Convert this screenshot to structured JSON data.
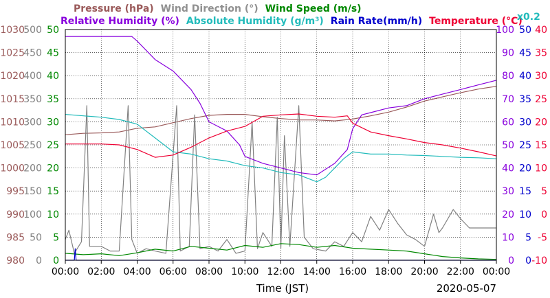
{
  "legend": {
    "line1": [
      {
        "text": "Pressure (hPa)",
        "color": "#9a5a5a"
      },
      {
        "text": "Wind Direction (°)",
        "color": "#909090"
      },
      {
        "text": "Wind Speed (m/s)",
        "color": "#008800"
      }
    ],
    "line2": [
      {
        "text": "Relative Humidity (%)",
        "color": "#8800dd"
      },
      {
        "text": "Absolute Humidity (g/m³)",
        "color": "#22bbbb"
      },
      {
        "text": "Rain Rate(mm/h)",
        "color": "#0000cc"
      },
      {
        "text": "Temperature (°C)",
        "color": "#ee0033"
      }
    ],
    "rain_scale": {
      "text": "x0.2",
      "color": "#22bbbb"
    }
  },
  "footer": {
    "xlabel": "Time (JST)",
    "date": "2020-05-07"
  },
  "chart_data": {
    "type": "line",
    "x_ticks": [
      "00:00",
      "02:00",
      "04:00",
      "06:00",
      "08:00",
      "10:00",
      "12:00",
      "14:00",
      "16:00",
      "18:00",
      "20:00",
      "22:00",
      "00:00"
    ],
    "x_range_hours": [
      0,
      24
    ],
    "axes": {
      "pressure": {
        "label": "Pressure (hPa)",
        "color": "#9a5a5a",
        "ticks": [
          1030,
          1025,
          1020,
          1015,
          1010,
          1005,
          1000,
          995,
          990,
          985,
          980
        ],
        "range": [
          980,
          1030
        ]
      },
      "wind_direction": {
        "label": "Wind Direction (°)",
        "color": "#808080",
        "ticks": [
          500,
          450,
          400,
          350,
          300,
          250,
          200,
          150,
          100,
          50,
          0
        ],
        "range": [
          0,
          500
        ]
      },
      "wind_speed": {
        "label": "Wind Speed (m/s)",
        "color": "#008800",
        "ticks": [
          50,
          45,
          40,
          35,
          30,
          25,
          20,
          15,
          10,
          5,
          0
        ],
        "range": [
          0,
          50
        ]
      },
      "relative_humidity": {
        "label": "Relative Humidity (%)",
        "color": "#8800dd",
        "ticks": [
          100,
          90,
          80,
          70,
          60,
          50,
          40,
          30,
          20,
          10,
          0
        ],
        "range": [
          0,
          100
        ]
      },
      "rain_rate": {
        "label": "Rain Rate(mm/h)",
        "color": "#0000cc",
        "ticks": [
          50,
          45,
          40,
          35,
          30,
          25,
          20,
          15,
          10,
          5,
          0
        ],
        "range": [
          0,
          50
        ]
      },
      "temperature": {
        "label": "Temperature (°C)",
        "color": "#ee0033",
        "ticks": [
          40,
          35,
          30,
          25,
          20,
          15,
          10,
          5,
          0,
          -5,
          -10
        ],
        "range": [
          -10,
          40
        ]
      }
    },
    "grid": true,
    "series": [
      {
        "name": "Pressure (hPa)",
        "axis": "pressure",
        "color": "#9a5a5a",
        "points": [
          [
            0,
            1007.2
          ],
          [
            1,
            1007.5
          ],
          [
            2,
            1007.6
          ],
          [
            3,
            1007.8
          ],
          [
            4,
            1008.6
          ],
          [
            5,
            1008.9
          ],
          [
            6,
            1009.8
          ],
          [
            7,
            1010.7
          ],
          [
            8,
            1011.4
          ],
          [
            9,
            1011.6
          ],
          [
            10,
            1011.6
          ],
          [
            11,
            1011.1
          ],
          [
            12,
            1010.7
          ],
          [
            13,
            1010.4
          ],
          [
            14,
            1010.4
          ],
          [
            15,
            1010.2
          ],
          [
            16,
            1010.6
          ],
          [
            17,
            1011.3
          ],
          [
            18,
            1012.1
          ],
          [
            19,
            1013.2
          ],
          [
            20,
            1014.5
          ],
          [
            21,
            1015.4
          ],
          [
            22,
            1016.3
          ],
          [
            23,
            1017.1
          ],
          [
            24,
            1017.7
          ]
        ]
      },
      {
        "name": "Wind Direction (°)",
        "axis": "wind_direction",
        "color": "#808080",
        "points": [
          [
            0,
            45
          ],
          [
            0.2,
            65
          ],
          [
            0.5,
            15
          ],
          [
            0.9,
            40
          ],
          [
            1.2,
            335
          ],
          [
            1.35,
            30
          ],
          [
            2,
            30
          ],
          [
            2.5,
            20
          ],
          [
            3,
            20
          ],
          [
            3.5,
            335
          ],
          [
            3.7,
            45
          ],
          [
            4,
            15
          ],
          [
            4.5,
            25
          ],
          [
            5,
            20
          ],
          [
            5.6,
            15
          ],
          [
            6.2,
            335
          ],
          [
            6.4,
            20
          ],
          [
            6.9,
            30
          ],
          [
            7.2,
            315
          ],
          [
            7.5,
            25
          ],
          [
            8,
            30
          ],
          [
            8.5,
            20
          ],
          [
            9,
            45
          ],
          [
            9.5,
            15
          ],
          [
            10,
            20
          ],
          [
            10.4,
            300
          ],
          [
            10.7,
            25
          ],
          [
            11,
            60
          ],
          [
            11.5,
            30
          ],
          [
            11.8,
            310
          ],
          [
            12,
            25
          ],
          [
            12.2,
            270
          ],
          [
            12.5,
            30
          ],
          [
            13.0,
            335
          ],
          [
            13.3,
            50
          ],
          [
            13.8,
            25
          ],
          [
            14.5,
            20
          ],
          [
            15,
            40
          ],
          [
            15.5,
            30
          ],
          [
            16,
            60
          ],
          [
            16.5,
            40
          ],
          [
            17,
            95
          ],
          [
            17.5,
            65
          ],
          [
            18,
            110
          ],
          [
            18.5,
            80
          ],
          [
            19,
            55
          ],
          [
            19.5,
            45
          ],
          [
            20,
            30
          ],
          [
            20.5,
            100
          ],
          [
            20.8,
            60
          ],
          [
            21,
            70
          ],
          [
            21.6,
            110
          ],
          [
            22,
            90
          ],
          [
            22.5,
            70
          ],
          [
            23,
            70
          ],
          [
            24,
            70
          ]
        ]
      },
      {
        "name": "Wind Speed (m/s)",
        "axis": "wind_speed",
        "color": "#008800",
        "points": [
          [
            0,
            1.5
          ],
          [
            1,
            1.2
          ],
          [
            2,
            1.4
          ],
          [
            3,
            1.0
          ],
          [
            4,
            1.6
          ],
          [
            5,
            2.4
          ],
          [
            6,
            2.0
          ],
          [
            7,
            3.0
          ],
          [
            8,
            2.6
          ],
          [
            9,
            2.2
          ],
          [
            10,
            3.2
          ],
          [
            11,
            2.8
          ],
          [
            12,
            3.6
          ],
          [
            13,
            3.4
          ],
          [
            14,
            2.8
          ],
          [
            15,
            3.2
          ],
          [
            16,
            2.6
          ],
          [
            17,
            2.4
          ],
          [
            18,
            2.2
          ],
          [
            19,
            2.0
          ],
          [
            20,
            1.4
          ],
          [
            21,
            0.8
          ],
          [
            22,
            0.5
          ],
          [
            23,
            0.3
          ],
          [
            24,
            0.2
          ]
        ]
      },
      {
        "name": "Relative Humidity (%)",
        "axis": "relative_humidity",
        "color": "#8800dd",
        "points": [
          [
            0,
            97
          ],
          [
            1,
            97
          ],
          [
            2,
            97
          ],
          [
            3,
            97
          ],
          [
            3.7,
            97
          ],
          [
            4,
            95
          ],
          [
            5,
            87
          ],
          [
            6,
            82
          ],
          [
            7,
            74
          ],
          [
            7.5,
            68
          ],
          [
            8,
            60
          ],
          [
            8.5,
            58
          ],
          [
            9,
            56
          ],
          [
            9.7,
            50
          ],
          [
            10,
            45
          ],
          [
            11,
            42
          ],
          [
            12,
            40
          ],
          [
            13,
            38
          ],
          [
            14,
            37
          ],
          [
            15,
            42
          ],
          [
            15.7,
            48
          ],
          [
            16,
            57
          ],
          [
            16.5,
            63
          ],
          [
            17,
            64
          ],
          [
            18,
            66
          ],
          [
            19,
            67
          ],
          [
            20,
            70
          ],
          [
            21,
            72
          ],
          [
            22,
            74
          ],
          [
            23,
            76
          ],
          [
            24,
            78
          ]
        ]
      },
      {
        "name": "Absolute Humidity (g/m³)",
        "axis": "wind_speed",
        "color": "#22bbbb",
        "points": [
          [
            0,
            31.6
          ],
          [
            1,
            31.3
          ],
          [
            2,
            31.0
          ],
          [
            3,
            30.5
          ],
          [
            4,
            29.5
          ],
          [
            5,
            26.5
          ],
          [
            6,
            23.5
          ],
          [
            7,
            23.0
          ],
          [
            8,
            22.0
          ],
          [
            9,
            21.5
          ],
          [
            10,
            20.5
          ],
          [
            11,
            20.0
          ],
          [
            12,
            19.0
          ],
          [
            13,
            18.5
          ],
          [
            14,
            17.0
          ],
          [
            14.5,
            18.0
          ],
          [
            15,
            20.0
          ],
          [
            15.5,
            22.0
          ],
          [
            16,
            23.5
          ],
          [
            17,
            23.0
          ],
          [
            18,
            23.0
          ],
          [
            19,
            22.8
          ],
          [
            20,
            22.7
          ],
          [
            21,
            22.5
          ],
          [
            22,
            22.3
          ],
          [
            23,
            22.2
          ],
          [
            24,
            22.0
          ]
        ]
      },
      {
        "name": "Rain Rate(mm/h)",
        "axis": "rain_rate",
        "color": "#0000cc",
        "points": [
          [
            0,
            0
          ],
          [
            0.5,
            0
          ],
          [
            0.55,
            2.5
          ],
          [
            0.6,
            0
          ],
          [
            24,
            0
          ]
        ]
      },
      {
        "name": "Temperature (°C)",
        "axis": "temperature",
        "color": "#ee0033",
        "points": [
          [
            0,
            15.2
          ],
          [
            1,
            15.2
          ],
          [
            2,
            15.2
          ],
          [
            3,
            15.0
          ],
          [
            4,
            14.0
          ],
          [
            5,
            12.3
          ],
          [
            6,
            12.8
          ],
          [
            7,
            14.5
          ],
          [
            8,
            16.5
          ],
          [
            9,
            18.0
          ],
          [
            10,
            19.0
          ],
          [
            11,
            21.2
          ],
          [
            12,
            21.5
          ],
          [
            13,
            21.7
          ],
          [
            14,
            21.2
          ],
          [
            15,
            21.0
          ],
          [
            15.7,
            21.3
          ],
          [
            16,
            19.7
          ],
          [
            17,
            17.8
          ],
          [
            18,
            17.0
          ],
          [
            19,
            16.3
          ],
          [
            20,
            15.5
          ],
          [
            21,
            15.0
          ],
          [
            22,
            14.3
          ],
          [
            23,
            13.5
          ],
          [
            24,
            12.6
          ]
        ]
      }
    ]
  }
}
